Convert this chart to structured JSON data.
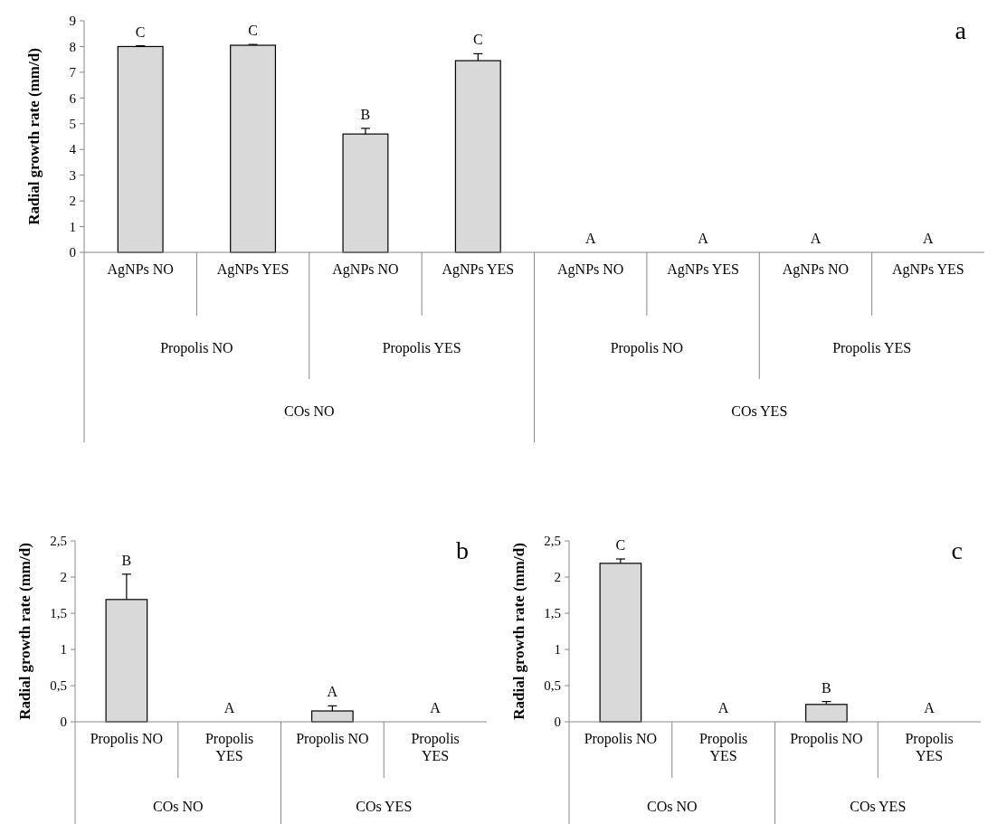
{
  "chart_data": [
    {
      "type": "bar",
      "title": "a",
      "ylabel": "Radial growth rate (mm/d)",
      "categories": [
        "AgNPs NO",
        "AgNPs YES",
        "AgNPs NO",
        "AgNPs YES",
        "AgNPs NO",
        "AgNPs YES",
        "AgNPs NO",
        "AgNPs YES"
      ],
      "values": [
        8.0,
        8.05,
        4.6,
        7.45,
        0,
        0,
        0,
        0
      ],
      "errors": [
        [
          8.0,
          8.03
        ],
        [
          8.05,
          8.08
        ],
        [
          4.6,
          4.82
        ],
        [
          7.45,
          7.72
        ],
        null,
        null,
        null,
        null
      ],
      "value_labels": [
        "C",
        "C",
        "B",
        "C",
        "A",
        "A",
        "A",
        "A"
      ],
      "color": "#d9d9d9",
      "ylim": [
        0,
        9
      ],
      "yticks": [
        0,
        1,
        2,
        3,
        4,
        5,
        6,
        7,
        8,
        9
      ],
      "annotations": [
        "Propolis NO",
        "Propolis YES",
        "Propolis NO",
        "Propolis YES",
        "COs NO",
        "COs YES"
      ]
    },
    {
      "type": "bar",
      "title": "b",
      "ylabel": "Radial growth rate (mm/d)",
      "categories": [
        "Propolis NO",
        "Propolis YES",
        "Propolis NO",
        "Propolis YES"
      ],
      "values": [
        1.69,
        0,
        0.15,
        0
      ],
      "errors": [
        [
          1.69,
          2.04
        ],
        null,
        [
          0.15,
          0.22
        ],
        null
      ],
      "value_labels": [
        "B",
        "A",
        "A",
        "A"
      ],
      "color": "#d9d9d9",
      "ylim": [
        0,
        2.5
      ],
      "yticks": [
        0,
        {
          "value": 0.5,
          "label": "0,5"
        },
        1,
        {
          "value": 1.5,
          "label": "1,5"
        },
        2,
        {
          "value": 2.5,
          "label": "2,5"
        }
      ],
      "annotations": [
        "COs NO",
        "COs YES"
      ]
    },
    {
      "type": "bar",
      "title": "c",
      "ylabel": "Radial growth rate (mm/d)",
      "categories": [
        "Propolis NO",
        "Propolis YES",
        "Propolis NO",
        "Propolis YES"
      ],
      "values": [
        2.19,
        0,
        0.24,
        0
      ],
      "errors": [
        [
          2.19,
          2.25
        ],
        null,
        [
          0.24,
          0.28
        ],
        null
      ],
      "value_labels": [
        "C",
        "A",
        "B",
        "A"
      ],
      "color": "#d9d9d9",
      "ylim": [
        0,
        2.5
      ],
      "yticks": [
        0,
        {
          "value": 0.5,
          "label": "0,5"
        },
        1,
        {
          "value": 1.5,
          "label": "1,5"
        },
        2,
        {
          "value": 2.5,
          "label": "2,5"
        }
      ],
      "annotations": [
        "COs NO",
        "COs YES"
      ]
    }
  ]
}
